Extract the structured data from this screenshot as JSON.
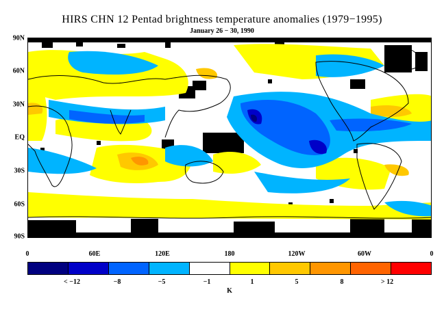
{
  "title": "HIRS CHN 12 Pentad brightness temperature anomalies (1979−1995)",
  "subtitle": "January 26 − 30, 1990",
  "lat_labels": [
    "90N",
    "60N",
    "30N",
    "EQ",
    "30S",
    "60S",
    "90S"
  ],
  "lon_labels": [
    "0",
    "60E",
    "120E",
    "180",
    "120W",
    "60W",
    "0"
  ],
  "colorbar": {
    "colors": [
      "#000080",
      "#0000c8",
      "#0064ff",
      "#00b4ff",
      "#ffffff",
      "#ffff00",
      "#ffc800",
      "#ff9600",
      "#ff6400",
      "#ff0000"
    ],
    "labels": [
      "< −12",
      "−8",
      "−5",
      "−1",
      "1",
      "5",
      "8",
      "> 12"
    ],
    "unit": "K"
  },
  "legend_colors": {
    "missing": "#000000",
    "coastline": "#000000"
  }
}
